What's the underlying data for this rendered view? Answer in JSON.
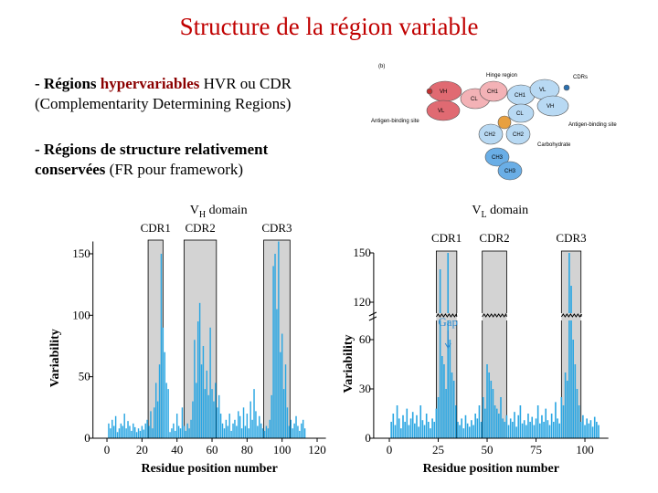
{
  "title": "Structure de la région variable",
  "bullets": [
    {
      "lines": [
        [
          "- Régions ",
          "hypervariables",
          " HVR ou CDR"
        ],
        [
          "(Complementarity Determining Regions)"
        ]
      ]
    },
    {
      "lines": [
        [
          "- Régions de structure relativement"
        ],
        [
          "conservées",
          " (FR pour framework)"
        ]
      ]
    }
  ],
  "figure_b": {
    "panel": "(b)",
    "hinge": "Hinge region",
    "cdrs": "CDRs",
    "antigen_left": "Antigen-binding site",
    "antigen_right": "Antigen-binding site",
    "carbohydrate": "Carbohydrate",
    "domains": [
      "VH",
      "VL",
      "CH1",
      "CL",
      "VH",
      "VL",
      "CH1",
      "CL",
      "CH2",
      "CH2",
      "CH3",
      "CH3"
    ]
  },
  "chart_data": [
    {
      "type": "bar",
      "title": [
        "V",
        "H",
        " domain"
      ],
      "x_label": "Residue position number",
      "y_label": "Variability",
      "color": "#2aa6e2",
      "xlim": [
        -8,
        125
      ],
      "xticks": [
        0,
        20,
        40,
        60,
        80,
        100,
        120
      ],
      "ylim": [
        0,
        160
      ],
      "yticks": [
        0,
        50,
        100,
        150
      ],
      "regions": [
        {
          "label": "CDR1",
          "start": 23.5,
          "end": 32
        },
        {
          "label": "CDR2",
          "start": 44,
          "end": 62.5
        },
        {
          "label": "CDR3",
          "start": 89.5,
          "end": 104.5
        }
      ],
      "x": [
        1,
        2,
        3,
        4,
        5,
        6,
        7,
        8,
        9,
        10,
        11,
        12,
        13,
        14,
        15,
        16,
        17,
        18,
        19,
        20,
        21,
        22,
        23,
        24,
        25,
        26,
        27,
        28,
        29,
        30,
        31,
        32,
        33,
        34,
        35,
        36,
        37,
        38,
        39,
        40,
        41,
        42,
        43,
        44,
        45,
        46,
        47,
        48,
        49,
        50,
        51,
        52,
        53,
        54,
        55,
        56,
        57,
        58,
        59,
        60,
        61,
        62,
        63,
        64,
        65,
        66,
        67,
        68,
        69,
        70,
        71,
        72,
        73,
        74,
        75,
        76,
        77,
        78,
        79,
        80,
        81,
        82,
        83,
        84,
        85,
        86,
        87,
        88,
        89,
        90,
        91,
        92,
        93,
        94,
        95,
        96,
        97,
        98,
        99,
        100,
        101,
        102,
        103,
        104,
        105,
        106,
        107,
        108,
        109,
        110,
        111,
        112,
        113
      ],
      "values": [
        12,
        8,
        15,
        10,
        18,
        5,
        8,
        12,
        10,
        20,
        8,
        14,
        10,
        6,
        12,
        9,
        5,
        8,
        6,
        10,
        7,
        12,
        15,
        10,
        22,
        8,
        25,
        45,
        30,
        60,
        150,
        90,
        70,
        45,
        40,
        5,
        8,
        12,
        6,
        20,
        10,
        8,
        25,
        10,
        6,
        12,
        8,
        15,
        30,
        80,
        45,
        95,
        110,
        60,
        75,
        40,
        55,
        35,
        90,
        40,
        30,
        45,
        25,
        35,
        20,
        12,
        8,
        15,
        10,
        20,
        6,
        12,
        15,
        10,
        22,
        18,
        8,
        25,
        10,
        20,
        8,
        30,
        15,
        40,
        22,
        10,
        18,
        12,
        8,
        6,
        10,
        8,
        15,
        35,
        140,
        150,
        105,
        160,
        70,
        85,
        40,
        60,
        25,
        10,
        15,
        8,
        12,
        18,
        10,
        6,
        12,
        15,
        8
      ]
    },
    {
      "type": "bar",
      "title": [
        "V",
        "L",
        " domain"
      ],
      "x_label": "Residue position number",
      "y_label": "Variability",
      "color": "#2aa6e2",
      "xlim": [
        -8,
        112
      ],
      "xticks": [
        0,
        25,
        50,
        75,
        100
      ],
      "ylim": [
        0,
        150
      ],
      "ybreak": [
        70,
        115
      ],
      "yticks": [
        0,
        30,
        60,
        120,
        150
      ],
      "annotation": "Gap",
      "regions": [
        {
          "label": "CDR1",
          "start": 24,
          "end": 34.5
        },
        {
          "label": "CDR2",
          "start": 47.5,
          "end": 60
        },
        {
          "label": "CDR3",
          "start": 88,
          "end": 98
        }
      ],
      "x": [
        1,
        2,
        3,
        4,
        5,
        6,
        7,
        8,
        9,
        10,
        11,
        12,
        13,
        14,
        15,
        16,
        17,
        18,
        19,
        20,
        21,
        22,
        23,
        24,
        25,
        26,
        27,
        28,
        29,
        30,
        31,
        32,
        33,
        34,
        35,
        36,
        37,
        38,
        39,
        40,
        41,
        42,
        43,
        44,
        45,
        46,
        47,
        48,
        49,
        50,
        51,
        52,
        53,
        54,
        55,
        56,
        57,
        58,
        59,
        60,
        61,
        62,
        63,
        64,
        65,
        66,
        67,
        68,
        69,
        70,
        71,
        72,
        73,
        74,
        75,
        76,
        77,
        78,
        79,
        80,
        81,
        82,
        83,
        84,
        85,
        86,
        87,
        88,
        89,
        90,
        91,
        92,
        93,
        94,
        95,
        96,
        97,
        98,
        99,
        100,
        101,
        102,
        103,
        104,
        105,
        106,
        107
      ],
      "values": [
        10,
        15,
        8,
        20,
        12,
        6,
        14,
        10,
        18,
        8,
        12,
        16,
        9,
        14,
        7,
        20,
        11,
        8,
        15,
        10,
        6,
        12,
        10,
        18,
        25,
        140,
        50,
        45,
        30,
        150,
        60,
        40,
        35,
        20,
        10,
        8,
        12,
        6,
        14,
        9,
        7,
        11,
        8,
        15,
        12,
        20,
        10,
        25,
        18,
        45,
        40,
        35,
        30,
        20,
        18,
        15,
        25,
        12,
        10,
        14,
        8,
        12,
        10,
        16,
        7,
        14,
        20,
        9,
        11,
        8,
        15,
        10,
        13,
        8,
        12,
        20,
        9,
        14,
        10,
        18,
        11,
        8,
        15,
        10,
        22,
        12,
        9,
        25,
        20,
        40,
        35,
        150,
        130,
        60,
        45,
        30,
        20,
        10,
        14,
        8,
        12,
        9,
        11,
        7,
        13,
        10,
        8
      ]
    }
  ]
}
